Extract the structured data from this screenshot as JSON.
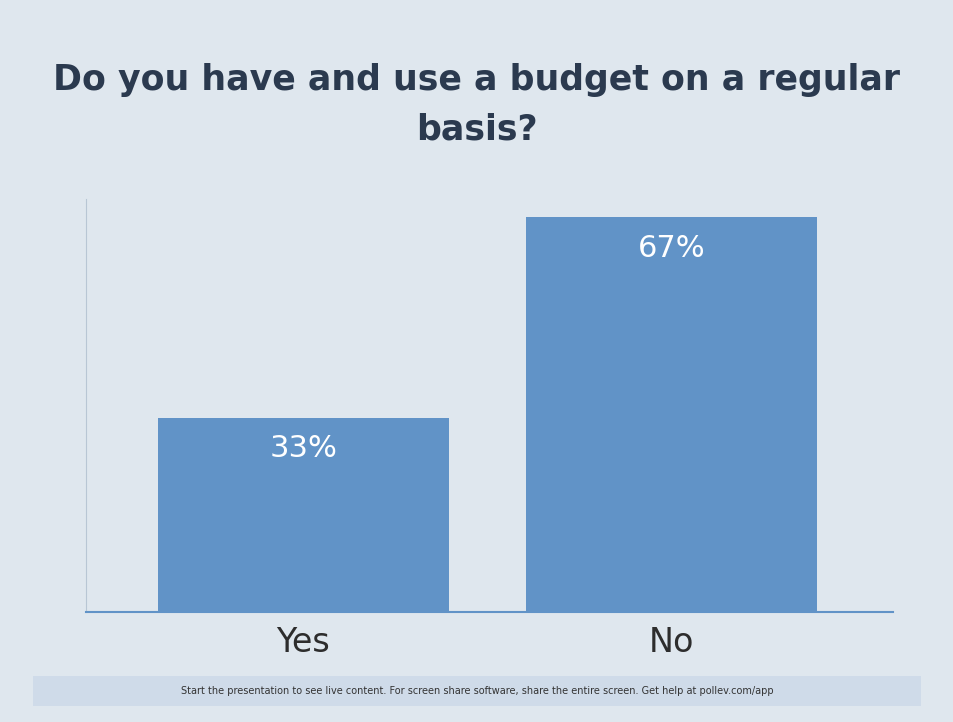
{
  "chart_data": {
    "type": "bar",
    "title": "Do you have and use a budget on a regular basis?",
    "categories": [
      "Yes",
      "No"
    ],
    "values": [
      33,
      67
    ],
    "value_labels": [
      "33%",
      "67%"
    ],
    "data_labels": true,
    "color": "#6193c7",
    "ylim": [
      0,
      70
    ],
    "yticks": [],
    "grid": false,
    "tick_labels": "x",
    "annotations": [
      "Start the presentation to see live content. For screen share software, share the entire screen. Get help at pollev.com/app"
    ]
  }
}
